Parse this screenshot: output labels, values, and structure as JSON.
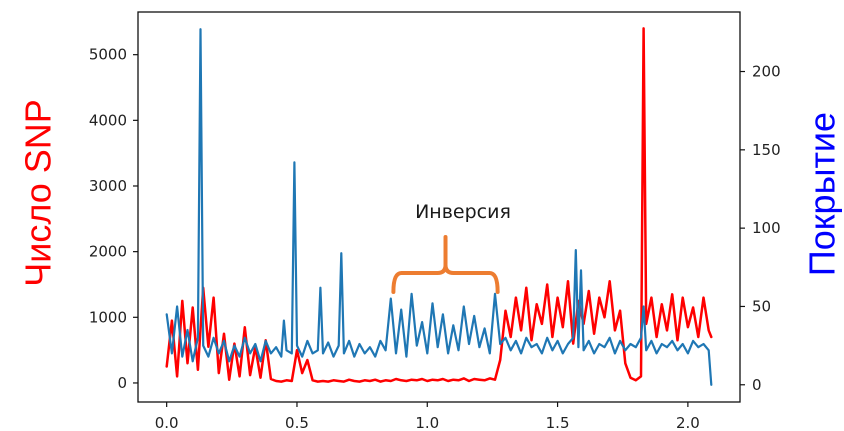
{
  "chart_data": {
    "type": "line",
    "title": "",
    "xlabel": "",
    "ylabel": "Число SNP",
    "ylabel_color": "#ff0000",
    "ylabel_right": "Покрытие",
    "ylabel_right_color": "#0000ff",
    "xlim": [
      -0.11,
      2.2
    ],
    "ylim": [
      -290,
      5650
    ],
    "ylim_right": [
      -11,
      238
    ],
    "grid": false,
    "legend": "none",
    "x_ticks": {
      "values": [
        0,
        0.5,
        1,
        1.5,
        2
      ],
      "labels": [
        "0.0",
        "0.5",
        "1.0",
        "1.5",
        "2.0"
      ]
    },
    "y_ticks": {
      "values": [
        0,
        1000,
        2000,
        3000,
        4000,
        5000
      ],
      "labels": [
        "0",
        "1000",
        "2000",
        "3000",
        "4000",
        "5000"
      ]
    },
    "y_ticks_right": {
      "values": [
        0,
        50,
        100,
        150,
        200
      ],
      "labels": [
        "0",
        "50",
        "100",
        "150",
        "200"
      ]
    },
    "series": [
      {
        "axis": "left",
        "color": "#ff0000",
        "x": [
          0.0,
          0.02,
          0.04,
          0.06,
          0.08,
          0.1,
          0.12,
          0.14,
          0.16,
          0.18,
          0.2,
          0.22,
          0.24,
          0.26,
          0.28,
          0.3,
          0.32,
          0.34,
          0.36,
          0.38,
          0.4,
          0.42,
          0.44,
          0.46,
          0.48,
          0.5,
          0.52,
          0.54,
          0.56,
          0.58,
          0.6,
          0.62,
          0.64,
          0.66,
          0.68,
          0.7,
          0.72,
          0.74,
          0.76,
          0.78,
          0.8,
          0.82,
          0.84,
          0.86,
          0.88,
          0.9,
          0.92,
          0.94,
          0.96,
          0.98,
          1.0,
          1.02,
          1.04,
          1.06,
          1.08,
          1.1,
          1.12,
          1.14,
          1.16,
          1.18,
          1.2,
          1.22,
          1.24,
          1.26,
          1.28,
          1.3,
          1.32,
          1.34,
          1.36,
          1.38,
          1.4,
          1.42,
          1.44,
          1.46,
          1.48,
          1.5,
          1.52,
          1.54,
          1.56,
          1.58,
          1.6,
          1.62,
          1.64,
          1.66,
          1.68,
          1.7,
          1.72,
          1.74,
          1.76,
          1.78,
          1.8,
          1.82,
          1.83,
          1.84,
          1.86,
          1.88,
          1.9,
          1.92,
          1.94,
          1.96,
          1.98,
          2.0,
          2.02,
          2.04,
          2.06,
          2.08,
          2.09
        ],
        "y": [
          250,
          950,
          100,
          1250,
          300,
          1150,
          200,
          1450,
          550,
          1300,
          150,
          750,
          50,
          600,
          100,
          850,
          120,
          550,
          80,
          650,
          60,
          30,
          20,
          40,
          30,
          500,
          150,
          350,
          40,
          20,
          30,
          20,
          40,
          30,
          20,
          50,
          30,
          20,
          40,
          30,
          50,
          20,
          40,
          30,
          60,
          40,
          30,
          50,
          40,
          60,
          30,
          50,
          40,
          60,
          30,
          50,
          40,
          70,
          30,
          60,
          50,
          40,
          70,
          50,
          350,
          1100,
          700,
          1300,
          800,
          1450,
          650,
          1200,
          900,
          1500,
          700,
          1300,
          850,
          1550,
          600,
          1250,
          900,
          1400,
          750,
          1300,
          1000,
          1550,
          800,
          1100,
          300,
          80,
          40,
          100,
          5400,
          900,
          1300,
          700,
          1200,
          800,
          1350,
          650,
          1300,
          850,
          1150,
          700,
          1300,
          800,
          700
        ]
      },
      {
        "axis": "right",
        "color": "#1f77b4",
        "x": [
          0.0,
          0.02,
          0.04,
          0.06,
          0.08,
          0.1,
          0.12,
          0.13,
          0.14,
          0.16,
          0.18,
          0.2,
          0.22,
          0.24,
          0.26,
          0.28,
          0.3,
          0.32,
          0.34,
          0.36,
          0.38,
          0.4,
          0.42,
          0.44,
          0.45,
          0.46,
          0.48,
          0.49,
          0.5,
          0.52,
          0.54,
          0.56,
          0.58,
          0.59,
          0.6,
          0.62,
          0.64,
          0.66,
          0.67,
          0.68,
          0.7,
          0.72,
          0.74,
          0.76,
          0.78,
          0.8,
          0.82,
          0.84,
          0.86,
          0.88,
          0.9,
          0.92,
          0.94,
          0.96,
          0.98,
          1.0,
          1.02,
          1.04,
          1.06,
          1.08,
          1.1,
          1.12,
          1.14,
          1.16,
          1.18,
          1.2,
          1.22,
          1.24,
          1.26,
          1.28,
          1.3,
          1.32,
          1.34,
          1.36,
          1.38,
          1.4,
          1.42,
          1.44,
          1.46,
          1.48,
          1.5,
          1.52,
          1.54,
          1.56,
          1.57,
          1.58,
          1.59,
          1.6,
          1.62,
          1.64,
          1.66,
          1.68,
          1.7,
          1.72,
          1.74,
          1.76,
          1.78,
          1.8,
          1.82,
          1.83,
          1.84,
          1.86,
          1.88,
          1.9,
          1.92,
          1.94,
          1.96,
          1.98,
          2.0,
          2.02,
          2.04,
          2.06,
          2.08,
          2.09
        ],
        "y": [
          45,
          20,
          50,
          18,
          35,
          15,
          30,
          227,
          25,
          18,
          30,
          20,
          28,
          15,
          25,
          18,
          30,
          20,
          26,
          15,
          28,
          20,
          24,
          18,
          41,
          22,
          20,
          142,
          25,
          18,
          28,
          20,
          22,
          62,
          20,
          27,
          18,
          25,
          84,
          20,
          28,
          18,
          26,
          20,
          24,
          18,
          28,
          22,
          55,
          20,
          48,
          18,
          58,
          25,
          40,
          20,
          52,
          24,
          45,
          20,
          38,
          22,
          50,
          26,
          44,
          24,
          36,
          20,
          58,
          26,
          30,
          22,
          28,
          20,
          30,
          24,
          26,
          20,
          30,
          22,
          28,
          20,
          26,
          30,
          86,
          24,
          73,
          22,
          28,
          20,
          26,
          24,
          30,
          20,
          28,
          22,
          26,
          24,
          30,
          50,
          22,
          28,
          20,
          26,
          24,
          28,
          22,
          26,
          20,
          28,
          24,
          26,
          22,
          0
        ]
      }
    ],
    "annotations": [
      {
        "text": "Инверсия",
        "x_start": 0.87,
        "x_end": 1.27,
        "color": "#ed7d31"
      }
    ]
  }
}
